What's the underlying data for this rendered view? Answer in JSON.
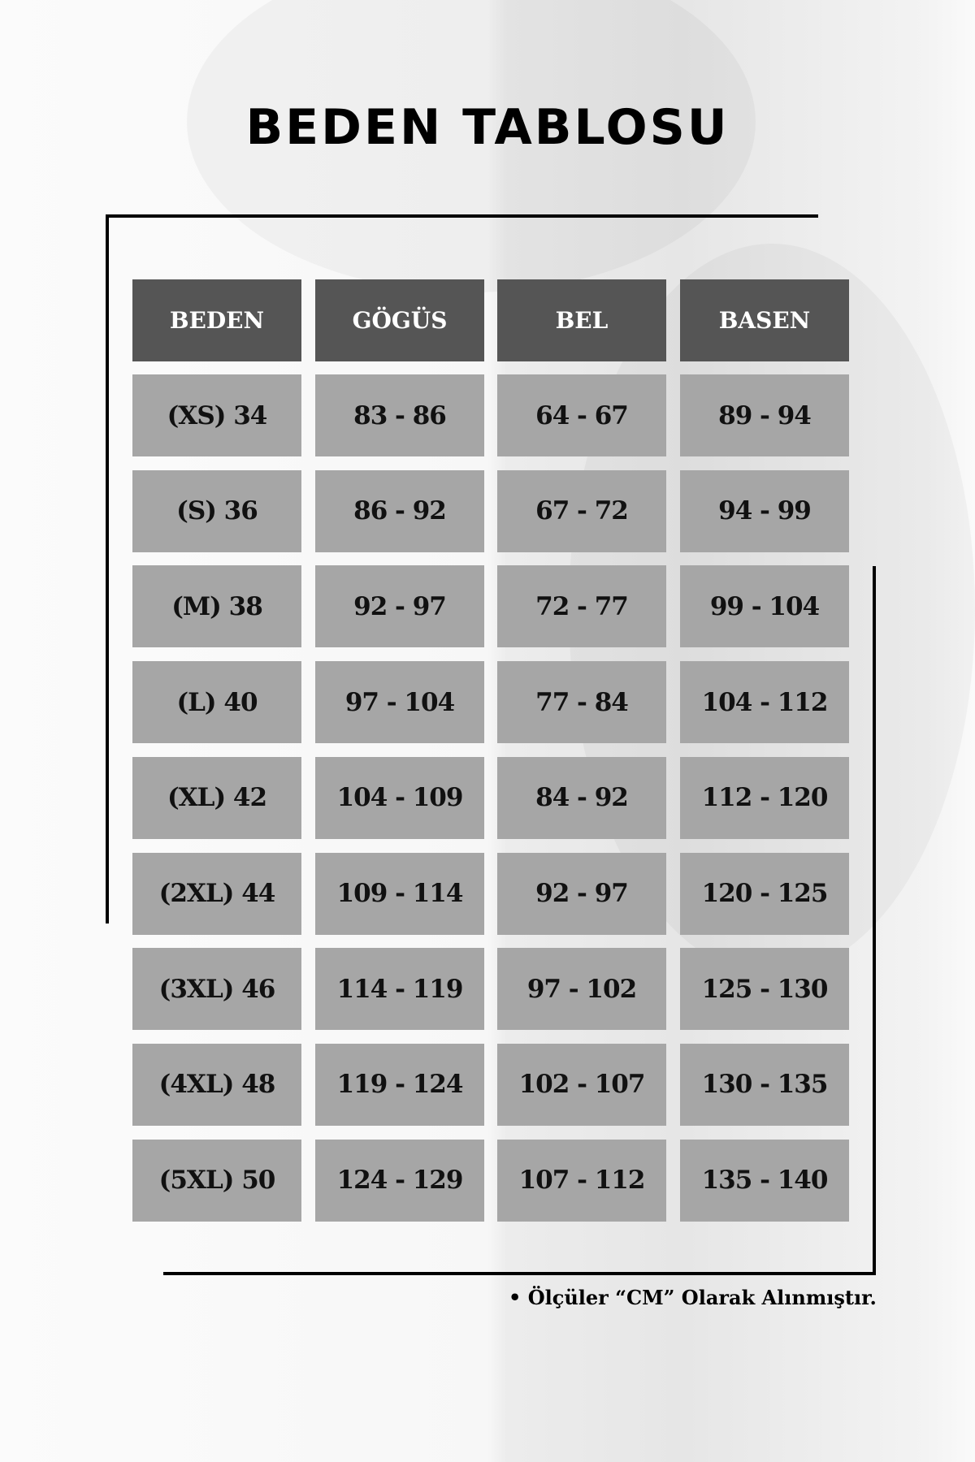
{
  "title": "BEDEN TABLOSU",
  "colors": {
    "header_bg": "#555555",
    "cell_bg": "#a6a6a6",
    "frame": "#000000"
  },
  "table": {
    "headers": [
      "BEDEN",
      "GÖGÜS",
      "BEL",
      "BASEN"
    ],
    "rows": [
      [
        "(XS) 34",
        "83 - 86",
        "64 - 67",
        "89 - 94"
      ],
      [
        "(S) 36",
        "86 - 92",
        "67 - 72",
        "94 - 99"
      ],
      [
        "(M) 38",
        "92 - 97",
        "72 - 77",
        "99 - 104"
      ],
      [
        "(L) 40",
        "97 - 104",
        "77 - 84",
        "104 - 112"
      ],
      [
        "(XL) 42",
        "104 - 109",
        "84 - 92",
        "112 - 120"
      ],
      [
        "(2XL) 44",
        "109 - 114",
        "92 - 97",
        "120 - 125"
      ],
      [
        "(3XL) 46",
        "114 - 119",
        "97 - 102",
        "125 - 130"
      ],
      [
        "(4XL) 48",
        "119 - 124",
        "102 - 107",
        "130 - 135"
      ],
      [
        "(5XL) 50",
        "124 - 129",
        "107 - 112",
        "135 - 140"
      ]
    ]
  },
  "note": "• Ölçüler “CM” Olarak Alınmıştır."
}
